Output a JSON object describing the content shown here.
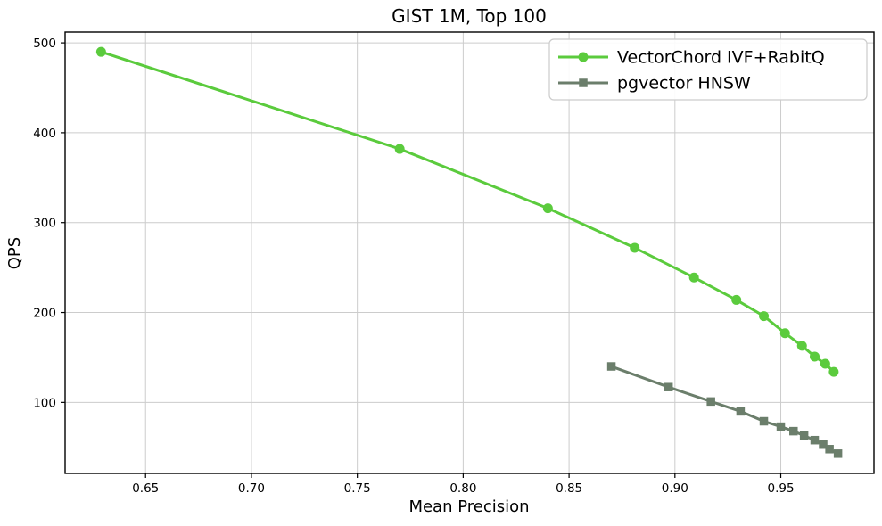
{
  "chart_data": {
    "type": "line",
    "title": "GIST 1M, Top 100",
    "xlabel": "Mean Precision",
    "ylabel": "QPS",
    "xlim": [
      0.612,
      0.994
    ],
    "ylim": [
      21,
      512
    ],
    "xticks": [
      0.65,
      0.7,
      0.75,
      0.8,
      0.85,
      0.9,
      0.95
    ],
    "yticks": [
      100,
      200,
      300,
      400,
      500
    ],
    "grid": true,
    "legend_position": "upper right",
    "series": [
      {
        "name": "VectorChord IVF+RabitQ",
        "color": "#5bcb3d",
        "marker": "circle",
        "x": [
          0.629,
          0.77,
          0.84,
          0.881,
          0.909,
          0.929,
          0.942,
          0.952,
          0.96,
          0.966,
          0.971,
          0.975
        ],
        "y": [
          490,
          382,
          316,
          272,
          239,
          214,
          196,
          177,
          163,
          151,
          143,
          134
        ]
      },
      {
        "name": "pgvector HNSW",
        "color": "#6b7e6b",
        "marker": "square",
        "x": [
          0.87,
          0.897,
          0.917,
          0.931,
          0.942,
          0.95,
          0.956,
          0.961,
          0.966,
          0.97,
          0.973,
          0.977
        ],
        "y": [
          140,
          117,
          101,
          90,
          79,
          73,
          68,
          63,
          58,
          53,
          48,
          43
        ]
      }
    ],
    "colors": {
      "grid": "#cccccc",
      "spine": "#000000",
      "text": "#000000",
      "legend_border": "#cccccc",
      "legend_bg": "#ffffff"
    }
  }
}
